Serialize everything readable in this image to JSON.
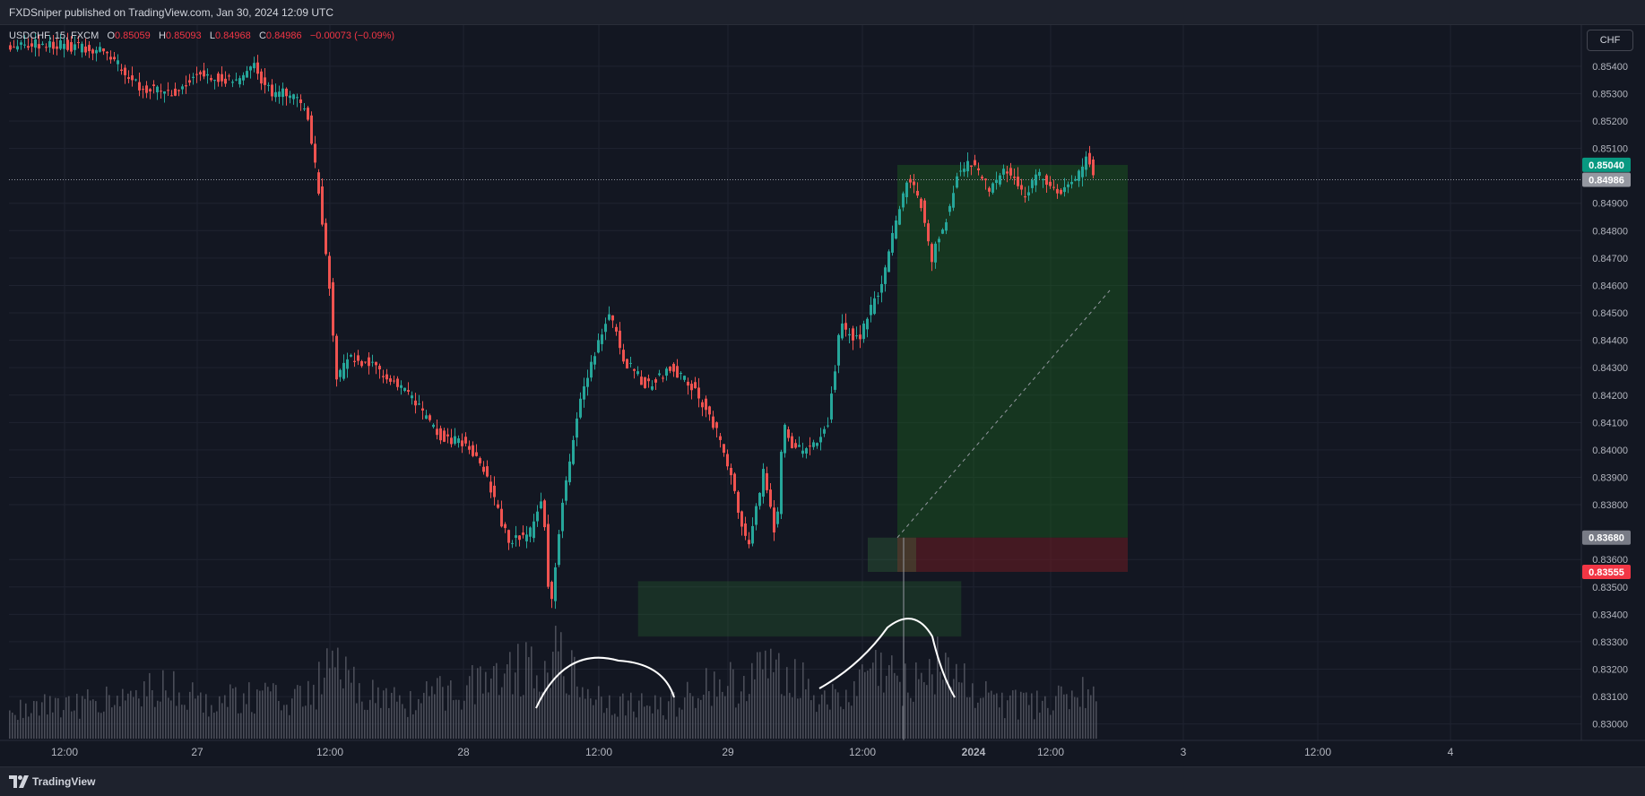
{
  "header": {
    "published_text": "FXDSniper published on TradingView.com, Jan 30, 2024 12:09 UTC"
  },
  "legend": {
    "symbol": "USDCHF, 15, FXCM",
    "open_label": "O",
    "open_value": "0.85059",
    "high_label": "H",
    "high_value": "0.85093",
    "low_label": "L",
    "low_value": "0.84968",
    "close_label": "C",
    "close_value": "0.84986",
    "change": "−0.00073 (−0.09%)"
  },
  "currency_button": "CHF",
  "footer": {
    "brand": "TradingView"
  },
  "colors": {
    "background": "#131722",
    "up_candle": "#26a69a",
    "down_candle": "#ef5350",
    "target_badge": "#089981",
    "stop_badge": "#f23645",
    "entry_badge": "#787b86",
    "last_price_badge": "#9598a1"
  },
  "chart_data": {
    "type": "candlestick",
    "symbol": "USDCHF",
    "timeframe": "15",
    "x_ticks": [
      "12:00",
      "27",
      "12:00",
      "28",
      "12:00",
      "29",
      "12:00",
      "2024",
      "12:00",
      "3",
      "12:00",
      "4"
    ],
    "y_ticks": [
      "0.85400",
      "0.85300",
      "0.85200",
      "0.85100",
      "0.84900",
      "0.84800",
      "0.84700",
      "0.84600",
      "0.84500",
      "0.84400",
      "0.84300",
      "0.84200",
      "0.84100",
      "0.84000",
      "0.83900",
      "0.83800",
      "0.83600",
      "0.83500",
      "0.83400",
      "0.83300",
      "0.83200",
      "0.83100",
      "0.83000"
    ],
    "ylim": [
      0.8294,
      0.8555
    ],
    "grid": true,
    "price_path": [
      [
        0,
        0.8548
      ],
      [
        60,
        0.8548
      ],
      [
        110,
        0.8545
      ],
      [
        150,
        0.8532
      ],
      [
        185,
        0.853
      ],
      [
        215,
        0.8538
      ],
      [
        255,
        0.8534
      ],
      [
        275,
        0.854
      ],
      [
        295,
        0.853
      ],
      [
        315,
        0.853
      ],
      [
        335,
        0.8523
      ],
      [
        350,
        0.849
      ],
      [
        360,
        0.846
      ],
      [
        368,
        0.8425
      ],
      [
        380,
        0.8433
      ],
      [
        400,
        0.8432
      ],
      [
        430,
        0.8425
      ],
      [
        450,
        0.842
      ],
      [
        470,
        0.841
      ],
      [
        490,
        0.8403
      ],
      [
        510,
        0.8403
      ],
      [
        530,
        0.8395
      ],
      [
        545,
        0.838
      ],
      [
        560,
        0.8366
      ],
      [
        585,
        0.837
      ],
      [
        598,
        0.8385
      ],
      [
        606,
        0.834
      ],
      [
        620,
        0.838
      ],
      [
        640,
        0.842
      ],
      [
        660,
        0.844
      ],
      [
        672,
        0.845
      ],
      [
        690,
        0.8432
      ],
      [
        715,
        0.8423
      ],
      [
        740,
        0.843
      ],
      [
        760,
        0.8425
      ],
      [
        780,
        0.8415
      ],
      [
        800,
        0.84
      ],
      [
        815,
        0.838
      ],
      [
        828,
        0.8364
      ],
      [
        845,
        0.8393
      ],
      [
        858,
        0.8368
      ],
      [
        866,
        0.841
      ],
      [
        878,
        0.84
      ],
      [
        895,
        0.84
      ],
      [
        915,
        0.8408
      ],
      [
        930,
        0.8445
      ],
      [
        950,
        0.844
      ],
      [
        975,
        0.846
      ],
      [
        990,
        0.848
      ],
      [
        1005,
        0.85
      ],
      [
        1020,
        0.849
      ],
      [
        1032,
        0.847
      ],
      [
        1048,
        0.8485
      ],
      [
        1060,
        0.85
      ],
      [
        1075,
        0.8505
      ],
      [
        1095,
        0.8495
      ],
      [
        1115,
        0.8503
      ],
      [
        1135,
        0.8493
      ],
      [
        1150,
        0.85
      ],
      [
        1175,
        0.8493
      ],
      [
        1195,
        0.85
      ],
      [
        1205,
        0.8508
      ],
      [
        1213,
        0.8499
      ]
    ],
    "position_tool": {
      "entry": 0.8368,
      "target": 0.8504,
      "stop": 0.83555
    },
    "demand_zone": [
      0.8332,
      0.8352
    ],
    "current_price": 0.84986,
    "price_badges": [
      "0.85040",
      "0.84986",
      "0.83680",
      "0.83555"
    ],
    "volume_peaks": [
      [
        0,
        0.3
      ],
      [
        60,
        0.35
      ],
      [
        120,
        0.4
      ],
      [
        175,
        0.55
      ],
      [
        210,
        0.4
      ],
      [
        260,
        0.45
      ],
      [
        330,
        0.4
      ],
      [
        358,
        0.75
      ],
      [
        400,
        0.45
      ],
      [
        450,
        0.4
      ],
      [
        510,
        0.55
      ],
      [
        545,
        0.75
      ],
      [
        560,
        0.7
      ],
      [
        608,
        0.9
      ],
      [
        640,
        0.5
      ],
      [
        680,
        0.35
      ],
      [
        730,
        0.35
      ],
      [
        780,
        0.55
      ],
      [
        820,
        0.6
      ],
      [
        860,
        0.8
      ],
      [
        900,
        0.5
      ],
      [
        930,
        0.35
      ],
      [
        960,
        0.75
      ],
      [
        1000,
        0.6
      ],
      [
        1040,
        0.85
      ],
      [
        1080,
        0.45
      ],
      [
        1130,
        0.35
      ],
      [
        1170,
        0.4
      ],
      [
        1205,
        0.5
      ]
    ]
  }
}
